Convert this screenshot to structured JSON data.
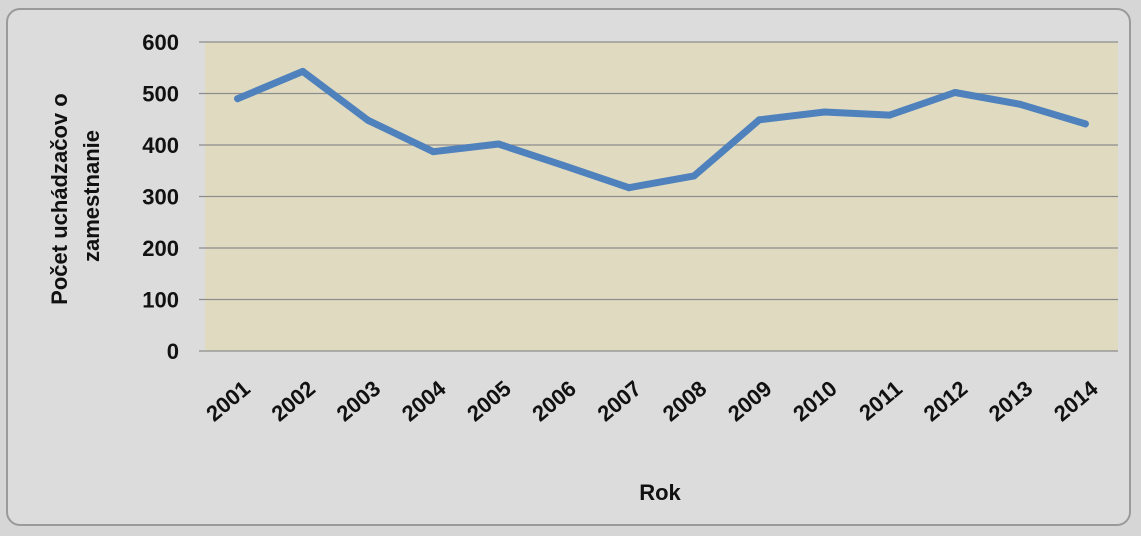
{
  "chart_data": {
    "type": "line",
    "title": "",
    "xlabel": "Rok",
    "ylabel_lines": [
      "Počet uchádzačov o",
      "zamestnanie"
    ],
    "categories": [
      "2001",
      "2002",
      "2003",
      "2004",
      "2005",
      "2006",
      "2007",
      "2008",
      "2009",
      "2010",
      "2011",
      "2012",
      "2013",
      "2014"
    ],
    "series": [
      {
        "values": [
          490,
          543,
          448,
          387,
          402,
          360,
          317,
          340,
          449,
          464,
          458,
          502,
          479,
          441
        ]
      }
    ],
    "ylim": [
      0,
      600
    ],
    "yticks": [
      0,
      100,
      200,
      300,
      400,
      500,
      600
    ],
    "grid": true,
    "colors": {
      "line": "#4f81bd",
      "plot_bg": "#e0dbc0",
      "grid": "#8c8c8c",
      "frame_bg": "#dcdcdc"
    }
  }
}
